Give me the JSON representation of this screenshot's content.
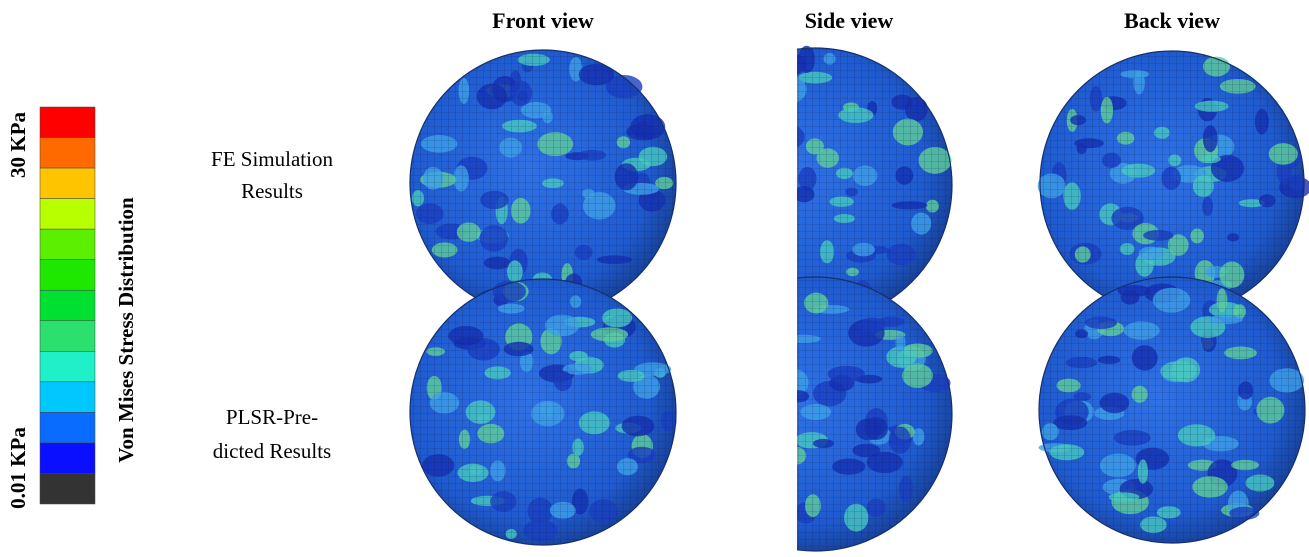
{
  "legend": {
    "max_label": "30 KPa",
    "min_label": "0.01 KPa",
    "title": "Von Mises Stress Distribution"
  },
  "columns": [
    "Front view",
    "Side view",
    "Back view"
  ],
  "rows": [
    {
      "lines": [
        "FE Simulation",
        "Results"
      ]
    },
    {
      "lines": [
        "PLSR-Pre-",
        "dicted Results"
      ]
    }
  ]
}
